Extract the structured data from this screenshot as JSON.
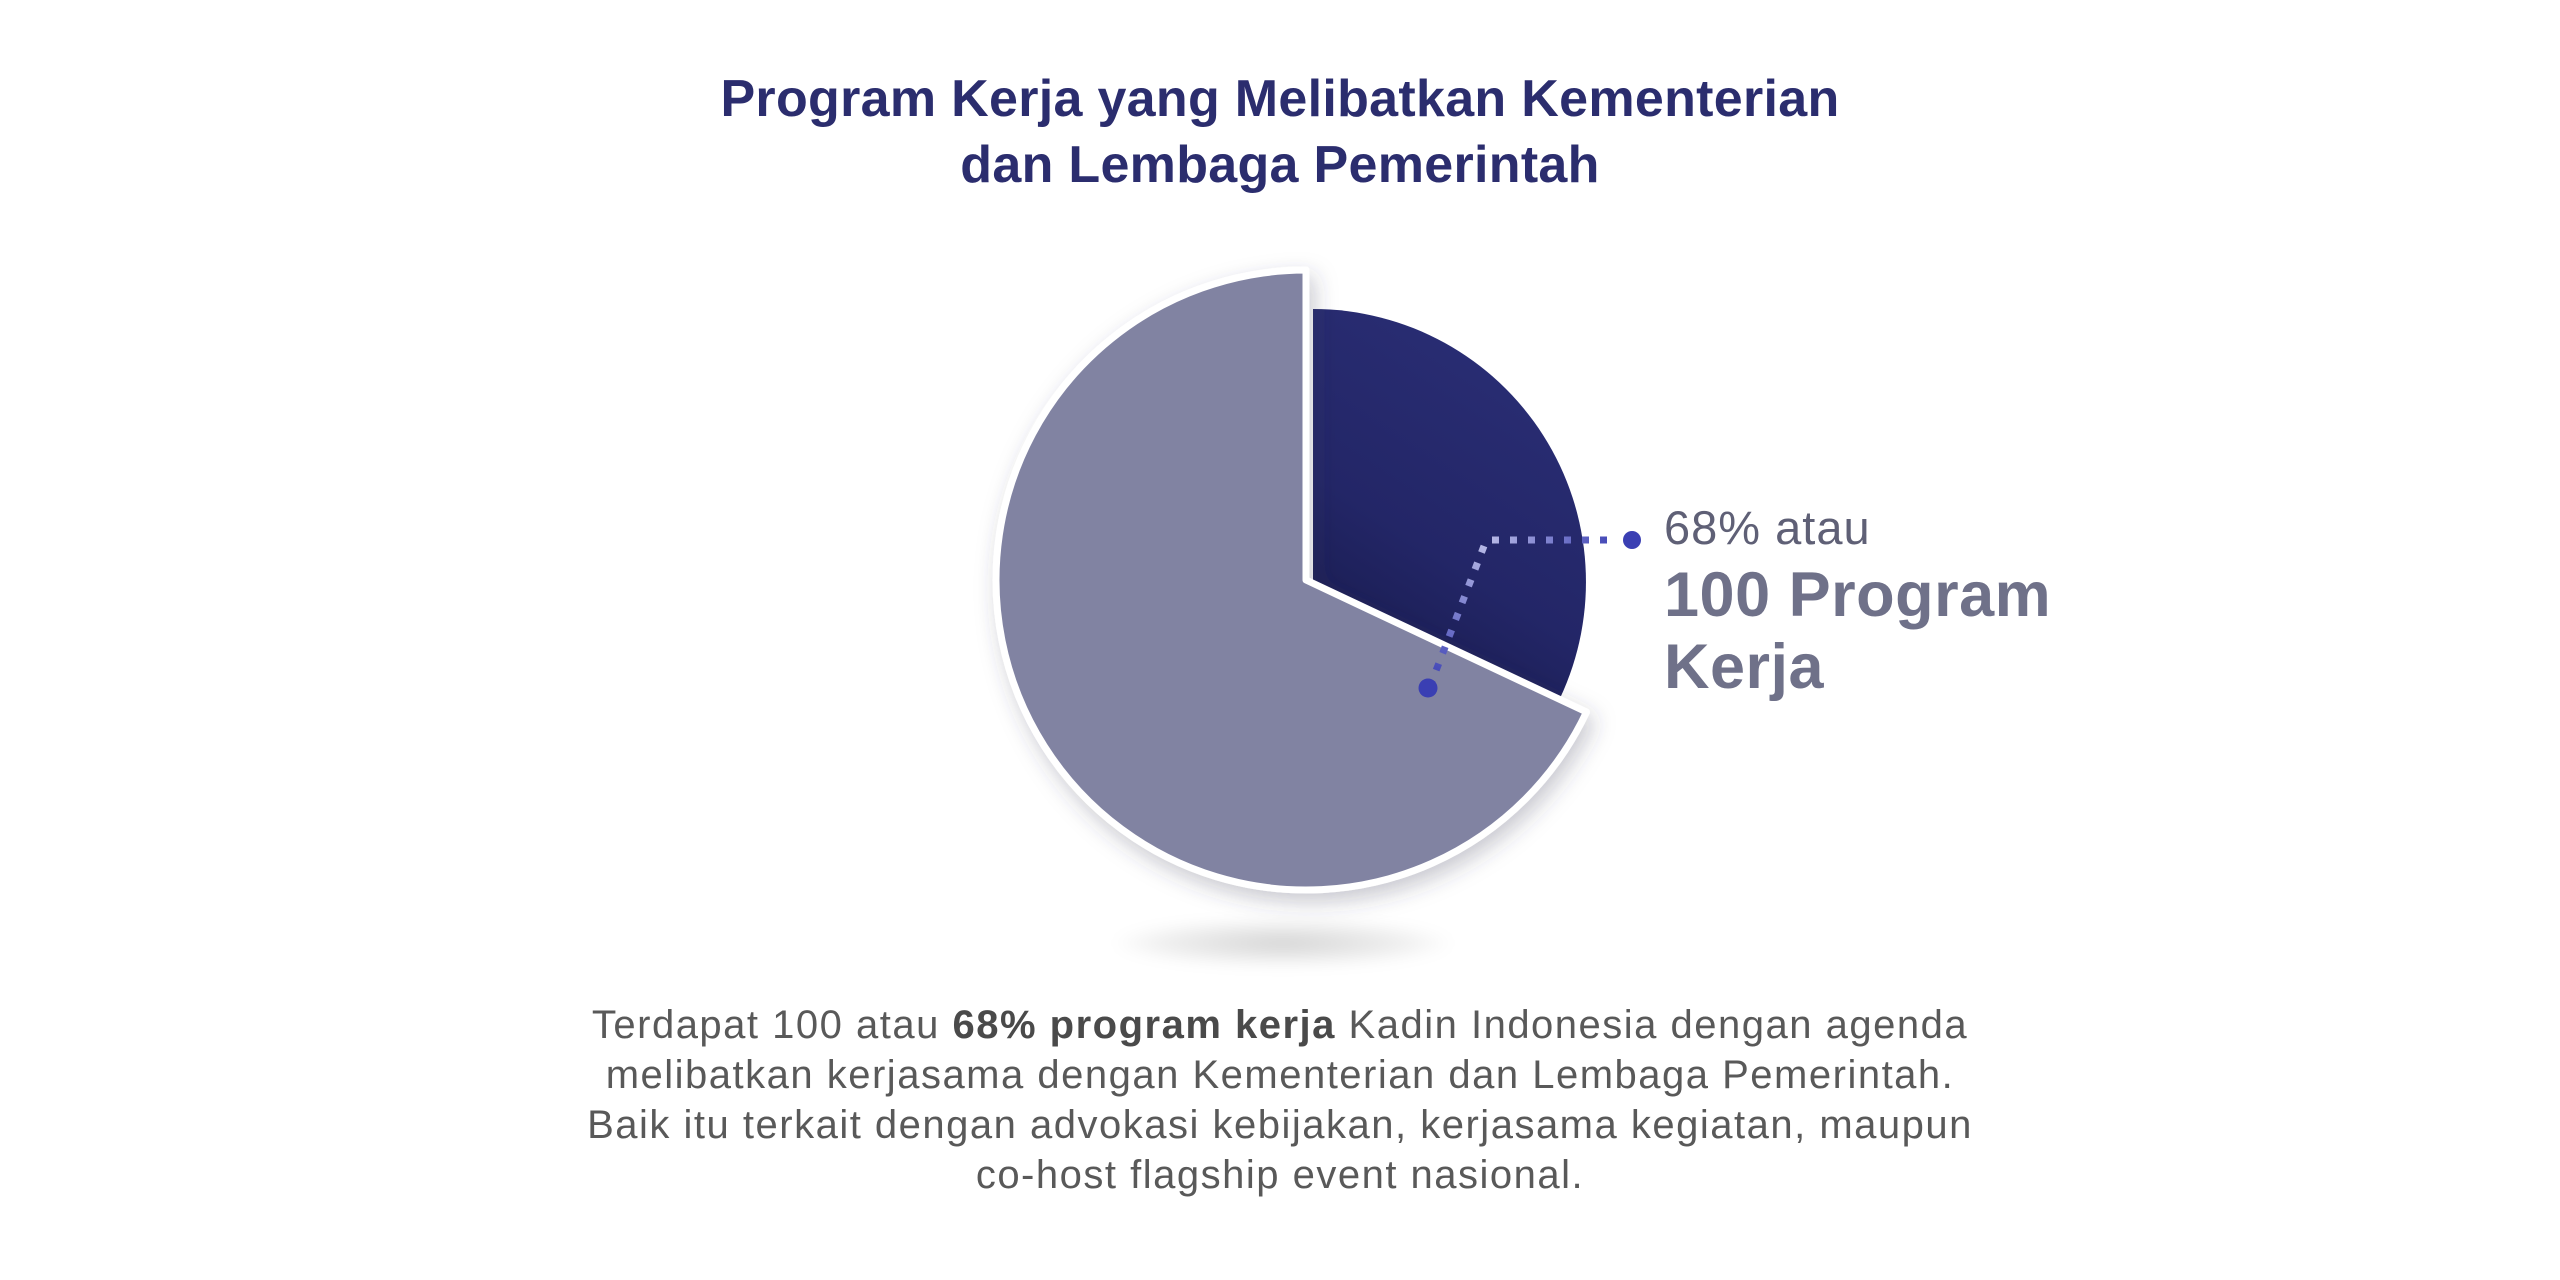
{
  "title": {
    "line1": "Program Kerja yang Melibatkan Kementerian",
    "line2": "dan Lembaga Pemerintah"
  },
  "chart_data": {
    "type": "pie",
    "title": "Program Kerja yang Melibatkan Kementerian dan Lembaga Pemerintah",
    "slices": [
      {
        "name": "Program kerja yang melibatkan Kementerian dan Lembaga Pemerintah",
        "percent": 68,
        "programs": 100,
        "color": "#8183a2",
        "highlighted": true,
        "callout": "68% atau 100 Program Kerja"
      },
      {
        "name": "",
        "percent": 32,
        "color": "#232667",
        "highlighted": false
      }
    ],
    "start_angle_deg": 0,
    "direction": "clockwise",
    "legend": false,
    "labels_on_slices": false
  },
  "callout": {
    "percent_label": "68% atau",
    "value_label": "100 Program Kerja"
  },
  "description": {
    "l1a": "Terdapat 100 atau ",
    "l1b": "68% program kerja",
    "l1c": " Kadin Indonesia dengan agenda",
    "l2": "melibatkan kerjasama dengan Kementerian dan Lembaga Pemerintah.",
    "l3": "Baik itu terkait dengan advokasi kebijakan, kerjasama kegiatan, maupun",
    "l4": "co-host flagship event nasional."
  },
  "colors": {
    "title_text": "#2b2d6e",
    "slice_main": "#8183a2",
    "slice_other": "#232667",
    "leader_line": "#3a3fb3",
    "leader_line_faded": "#b6b8e5",
    "callout_percent_text": "#5f6076",
    "callout_value_text": "#6f7189",
    "description_text": "#595959",
    "background": "#ffffff"
  }
}
